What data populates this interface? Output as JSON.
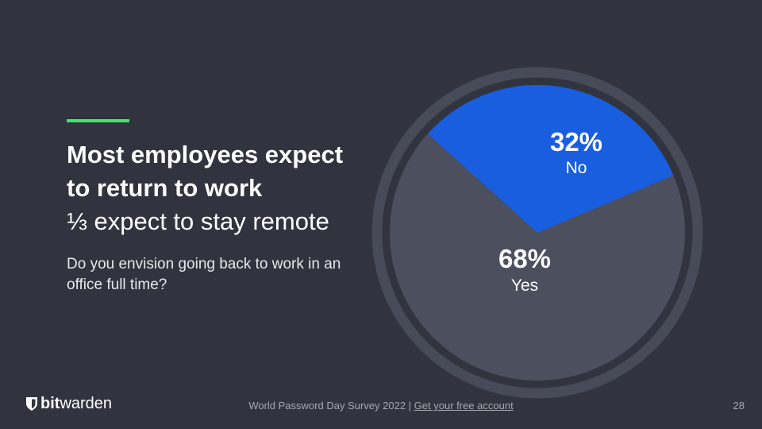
{
  "slide": {
    "headline_bold_1": "Most employees expect",
    "headline_bold_2": "to return to work",
    "headline_light": "⅓ expect to stay remote",
    "question": "Do you envision going back to work in an office full time?"
  },
  "chart_data": {
    "type": "pie",
    "labels": [
      "No",
      "Yes"
    ],
    "values": [
      32,
      68
    ],
    "value_labels": [
      "32%",
      "68%"
    ],
    "colors": [
      "#1a5ee0",
      "#4b4f5e"
    ],
    "ring_color": "#474a57"
  },
  "footer": {
    "brand_bold": "bit",
    "brand_light": "warden",
    "survey_text": "World Password Day Survey 2022 |",
    "link_text": "Get your free account",
    "page_number": "28"
  },
  "colors": {
    "background": "#31343e",
    "accent": "#3cea62"
  }
}
